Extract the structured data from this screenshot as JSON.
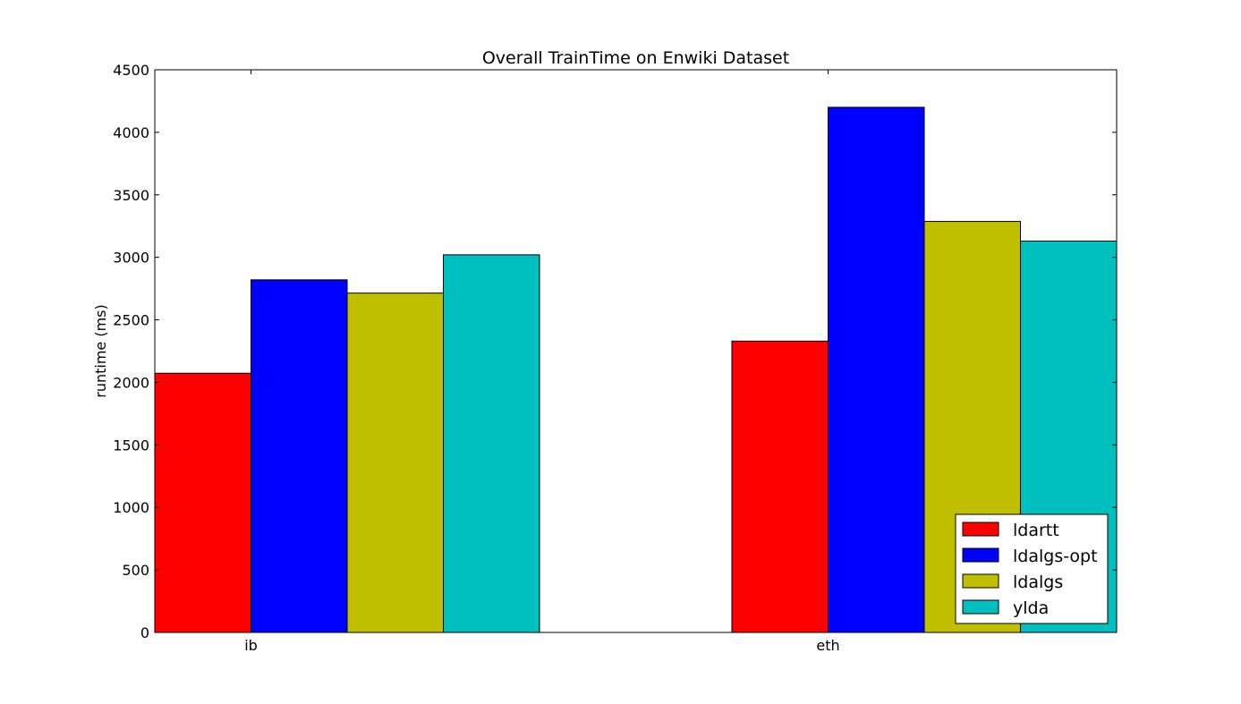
{
  "chart_data": {
    "type": "bar",
    "title": "Overall TrainTime on Enwiki Dataset",
    "xlabel": "",
    "ylabel": "runtime (ms)",
    "categories": [
      "ib",
      "eth"
    ],
    "ylim": [
      0,
      4500
    ],
    "yticks": [
      0,
      500,
      1000,
      1500,
      2000,
      2500,
      3000,
      3500,
      4000,
      4500
    ],
    "grid": false,
    "legend_position": "bottom-right",
    "series": [
      {
        "name": "ldartt",
        "color": "#ff0000",
        "values": [
          2073,
          2330
        ]
      },
      {
        "name": "ldalgs-opt",
        "color": "#0000ff",
        "values": [
          2820,
          4200
        ]
      },
      {
        "name": "ldalgs",
        "color": "#bfbf00",
        "values": [
          2714,
          3287
        ]
      },
      {
        "name": "ylda",
        "color": "#00bfbf",
        "values": [
          3020,
          3130
        ]
      }
    ]
  }
}
